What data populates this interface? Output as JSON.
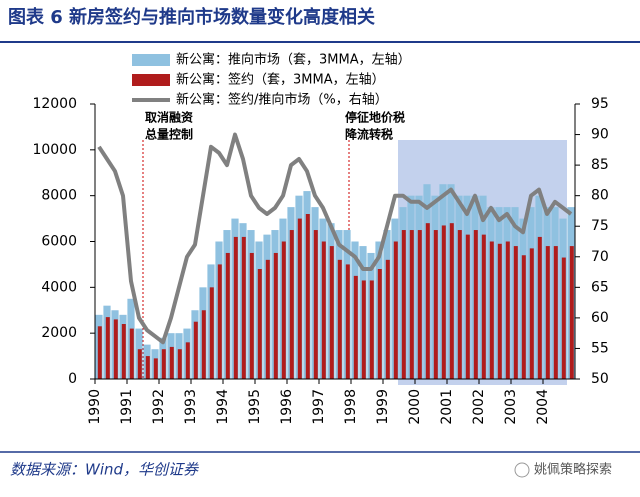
{
  "chart_data": {
    "type": "bar-line",
    "title": "图表 6   新房签约与推向市场数量变化高度相关",
    "source": "数据来源：Wind，华创证券",
    "watermark": "姚佩策略探索",
    "annotations": [
      [
        "取消融资",
        "总量控制"
      ],
      [
        "停征地价税",
        "降流转税"
      ]
    ],
    "categories": [
      "1990",
      null,
      null,
      null,
      "1991",
      null,
      null,
      null,
      "1992",
      null,
      null,
      null,
      "1993",
      null,
      null,
      null,
      "1994",
      null,
      null,
      null,
      "1995",
      null,
      null,
      null,
      "1996",
      null,
      null,
      null,
      "1997",
      null,
      null,
      null,
      "1998",
      null,
      null,
      null,
      "1999",
      null,
      null,
      null,
      "2000",
      null,
      null,
      null,
      "2001",
      null,
      null,
      null,
      "2002",
      null,
      null,
      null,
      "2003",
      null,
      null,
      null,
      "2004",
      null,
      null,
      null
    ],
    "series": [
      {
        "name": "新公寓：推向市场（套，3MMA，左轴）",
        "color": "#8fc1e0",
        "values": [
          2800,
          3200,
          3000,
          2800,
          3500,
          2200,
          1500,
          1300,
          1800,
          2000,
          2000,
          2200,
          3000,
          4000,
          5000,
          6000,
          6500,
          7000,
          6800,
          6500,
          6000,
          6300,
          6500,
          7000,
          7500,
          8000,
          8200,
          7500,
          7000,
          6800,
          6500,
          6500,
          6000,
          5800,
          5500,
          6000,
          6500,
          7000,
          7500,
          8000,
          8000,
          8500,
          8000,
          8500,
          8500,
          8000,
          8000,
          8000,
          8000,
          7500,
          7500,
          7500,
          7500,
          7000,
          7500,
          8000,
          7500,
          7500,
          7000,
          7500
        ]
      },
      {
        "name": "新公寓：签约（套，3MMA，左轴）",
        "color": "#b01c1c",
        "values": [
          2300,
          2700,
          2600,
          2400,
          2200,
          1300,
          1000,
          900,
          1300,
          1400,
          1300,
          1600,
          2500,
          3000,
          4000,
          5000,
          5500,
          6200,
          6200,
          5500,
          4800,
          5200,
          5500,
          6000,
          6500,
          7000,
          7200,
          6500,
          6000,
          5800,
          5200,
          5000,
          4500,
          4300,
          4300,
          4800,
          5200,
          6000,
          6500,
          6500,
          6500,
          6800,
          6500,
          6700,
          6800,
          6500,
          6300,
          6500,
          6300,
          6000,
          5900,
          6000,
          5800,
          5400,
          5700,
          6200,
          5800,
          5800,
          5300,
          5800
        ]
      },
      {
        "name": "新公寓：签约/推向市场（%，右轴）",
        "color": "#808080",
        "axis": "y2",
        "values": [
          88,
          86,
          84,
          80,
          66,
          60,
          58,
          57,
          56,
          60,
          65,
          70,
          72,
          80,
          88,
          87,
          85,
          90,
          86,
          80,
          78,
          77,
          78,
          80,
          85,
          86,
          84,
          80,
          78,
          75,
          72,
          71,
          70,
          68,
          68,
          70,
          75,
          80,
          80,
          79,
          79,
          78,
          79,
          80,
          81,
          79,
          77,
          80,
          76,
          78,
          76,
          77,
          75,
          74,
          80,
          81,
          77,
          79,
          78,
          77
        ]
      }
    ],
    "ylim": [
      0,
      12000
    ],
    "yticks": [
      0,
      2000,
      4000,
      6000,
      8000,
      10000,
      12000
    ],
    "y2lim": [
      50,
      95
    ],
    "y2ticks": [
      50,
      55,
      60,
      65,
      70,
      75,
      80,
      85,
      90,
      95
    ]
  }
}
